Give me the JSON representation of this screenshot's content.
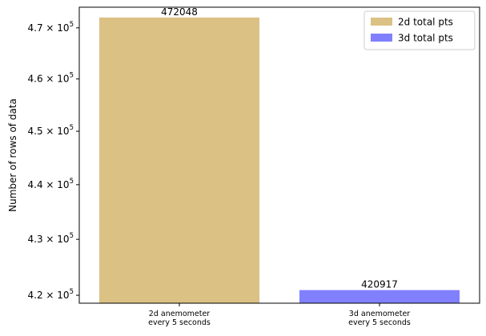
{
  "chart_data": {
    "type": "bar",
    "categories": [
      [
        "2d anemometer",
        "every 5 seconds"
      ],
      [
        "3d anemometer",
        "every 5 seconds"
      ]
    ],
    "series": [
      {
        "name": "2d total pts",
        "values": [
          472048,
          null
        ],
        "color": "#dbc184"
      },
      {
        "name": "3d total pts",
        "values": [
          null,
          420917
        ],
        "color": "#8080ff"
      }
    ],
    "data_labels": [
      "472048",
      "420917"
    ],
    "ylabel": "Number of rows of data",
    "yscale": "log",
    "ylim": [
      418600,
      474100
    ],
    "yticks": [
      {
        "value": 420000,
        "mantissa": "4.2",
        "exponent": "5"
      },
      {
        "value": 430000,
        "mantissa": "4.3",
        "exponent": "5"
      },
      {
        "value": 440000,
        "mantissa": "4.4",
        "exponent": "5"
      },
      {
        "value": 450000,
        "mantissa": "4.5",
        "exponent": "5"
      },
      {
        "value": 460000,
        "mantissa": "4.6",
        "exponent": "5"
      },
      {
        "value": 470000,
        "mantissa": "4.7",
        "exponent": "5"
      }
    ],
    "tick_base": "10",
    "legend_position": "top-right",
    "grid": false
  }
}
